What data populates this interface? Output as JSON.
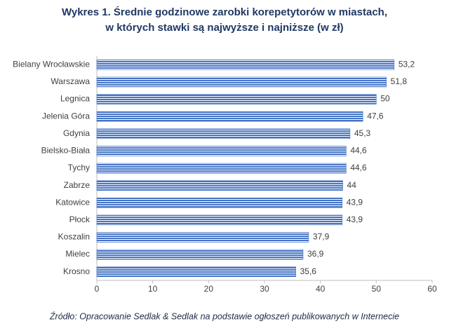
{
  "chart_data": {
    "type": "bar",
    "orientation": "horizontal",
    "title": [
      "Wykres 1. Średnie godzinowe zarobki korepetytorów w miastach,",
      "w których stawki są najwyższe i najniższe (w zł)"
    ],
    "categories": [
      "Bielany Wrocławskie",
      "Warszawa",
      "Legnica",
      "Jelenia Góra",
      "Gdynia",
      "Bielsko-Biała",
      "Tychy",
      "Zabrze",
      "Katowice",
      "Płock",
      "Koszalin",
      "Mielec",
      "Krosno"
    ],
    "values": [
      53.2,
      51.8,
      50,
      47.6,
      45.3,
      44.6,
      44.6,
      44,
      43.9,
      43.9,
      37.9,
      36.9,
      35.6
    ],
    "value_labels": [
      "53,2",
      "51,8",
      "50",
      "47,6",
      "45,3",
      "44,6",
      "44,6",
      "44",
      "43,9",
      "43,9",
      "37,9",
      "36,9",
      "35,6"
    ],
    "color": "#4472c4",
    "xlim": [
      0,
      60
    ],
    "xticks": [
      0,
      10,
      20,
      30,
      40,
      50,
      60
    ],
    "source": "Źródło: Opracowanie Sedlak & Sedlak na podstawie ogłoszeń publikowanych w Internecie"
  }
}
